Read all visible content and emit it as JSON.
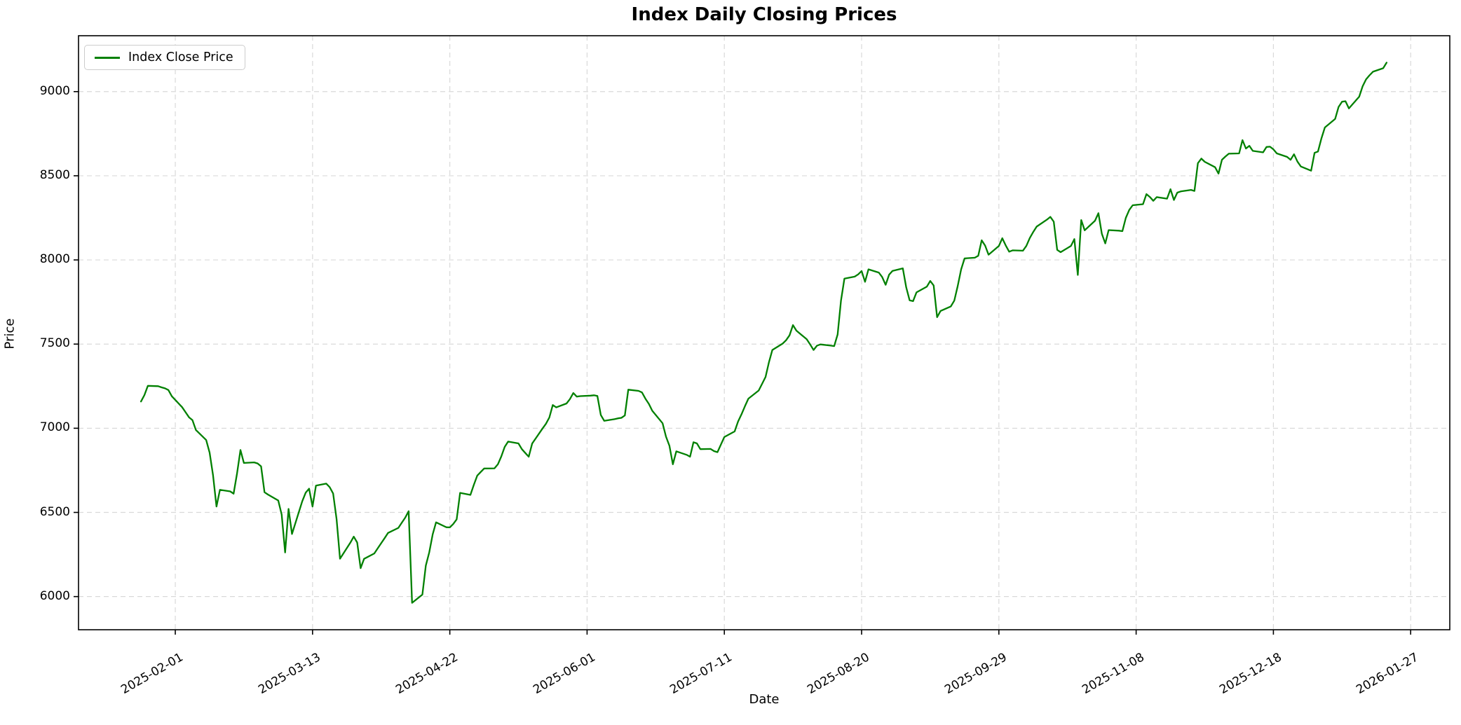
{
  "title": "Index Daily Closing Prices",
  "axes": {
    "xlabel": "Date",
    "ylabel": "Price",
    "y_ticks": [
      6000,
      6500,
      7000,
      7500,
      8000,
      8500,
      9000
    ],
    "x_tick_labels": [
      "2025-02-01",
      "2025-03-13",
      "2025-04-22",
      "2025-06-01",
      "2025-07-11",
      "2025-08-20",
      "2025-09-29",
      "2025-11-08",
      "2025-12-18",
      "2026-01-27"
    ],
    "y_range": [
      5803,
      9332
    ],
    "x_range_days_from_start": [
      -18.2,
      381.4
    ],
    "grid": "on",
    "grid_color": "#d9d9d9",
    "frame_color": "#000000"
  },
  "legend": {
    "label": "Index Close Price",
    "position": "upper left",
    "line_color": "#008000"
  },
  "chart_data": {
    "type": "line",
    "title": "Index Daily Closing Prices",
    "xlabel": "Date",
    "ylabel": "Price",
    "legend_position": "upper left",
    "ylim": [
      5803,
      9332
    ],
    "series": [
      {
        "name": "Index Close Price",
        "color": "#008000",
        "start_date": "2025-01-22",
        "dates": [
          "2025-01-22",
          "2025-01-23",
          "2025-01-24",
          "2025-01-27",
          "2025-01-28",
          "2025-01-29",
          "2025-01-30",
          "2025-01-31",
          "2025-02-03",
          "2025-02-04",
          "2025-02-05",
          "2025-02-06",
          "2025-02-07",
          "2025-02-10",
          "2025-02-11",
          "2025-02-12",
          "2025-02-13",
          "2025-02-14",
          "2025-02-17",
          "2025-02-18",
          "2025-02-19",
          "2025-02-20",
          "2025-02-21",
          "2025-02-24",
          "2025-02-25",
          "2025-02-26",
          "2025-02-27",
          "2025-02-28",
          "2025-03-03",
          "2025-03-04",
          "2025-03-05",
          "2025-03-06",
          "2025-03-07",
          "2025-03-10",
          "2025-03-11",
          "2025-03-12",
          "2025-03-13",
          "2025-03-14",
          "2025-03-17",
          "2025-03-18",
          "2025-03-19",
          "2025-03-20",
          "2025-03-21",
          "2025-03-24",
          "2025-03-25",
          "2025-03-26",
          "2025-03-27",
          "2025-03-28",
          "2025-03-31",
          "2025-04-01",
          "2025-04-02",
          "2025-04-03",
          "2025-04-04",
          "2025-04-07",
          "2025-04-08",
          "2025-04-09",
          "2025-04-10",
          "2025-04-11",
          "2025-04-14",
          "2025-04-15",
          "2025-04-16",
          "2025-04-17",
          "2025-04-18",
          "2025-04-21",
          "2025-04-22",
          "2025-04-23",
          "2025-04-24",
          "2025-04-25",
          "2025-04-28",
          "2025-04-29",
          "2025-04-30",
          "2025-05-01",
          "2025-05-02",
          "2025-05-05",
          "2025-05-06",
          "2025-05-07",
          "2025-05-08",
          "2025-05-09",
          "2025-05-12",
          "2025-05-13",
          "2025-05-14",
          "2025-05-15",
          "2025-05-16",
          "2025-05-19",
          "2025-05-20",
          "2025-05-21",
          "2025-05-22",
          "2025-05-23",
          "2025-05-26",
          "2025-05-27",
          "2025-05-28",
          "2025-05-29",
          "2025-05-30",
          "2025-06-02",
          "2025-06-03",
          "2025-06-04",
          "2025-06-05",
          "2025-06-06",
          "2025-06-09",
          "2025-06-10",
          "2025-06-11",
          "2025-06-12",
          "2025-06-13",
          "2025-06-16",
          "2025-06-17",
          "2025-06-18",
          "2025-06-19",
          "2025-06-20",
          "2025-06-23",
          "2025-06-24",
          "2025-06-25",
          "2025-06-26",
          "2025-06-27",
          "2025-06-30",
          "2025-07-01",
          "2025-07-02",
          "2025-07-03",
          "2025-07-04",
          "2025-07-07",
          "2025-07-08",
          "2025-07-09",
          "2025-07-10",
          "2025-07-11",
          "2025-07-14",
          "2025-07-15",
          "2025-07-16",
          "2025-07-17",
          "2025-07-18",
          "2025-07-21",
          "2025-07-22",
          "2025-07-23",
          "2025-07-24",
          "2025-07-25",
          "2025-07-28",
          "2025-07-29",
          "2025-07-30",
          "2025-07-31",
          "2025-08-01",
          "2025-08-04",
          "2025-08-05",
          "2025-08-06",
          "2025-08-07",
          "2025-08-08",
          "2025-08-11",
          "2025-08-12",
          "2025-08-13",
          "2025-08-14",
          "2025-08-15",
          "2025-08-18",
          "2025-08-19",
          "2025-08-20",
          "2025-08-21",
          "2025-08-22",
          "2025-08-25",
          "2025-08-26",
          "2025-08-27",
          "2025-08-28",
          "2025-08-29",
          "2025-09-01",
          "2025-09-02",
          "2025-09-03",
          "2025-09-04",
          "2025-09-05",
          "2025-09-08",
          "2025-09-09",
          "2025-09-10",
          "2025-09-11",
          "2025-09-12",
          "2025-09-15",
          "2025-09-16",
          "2025-09-17",
          "2025-09-18",
          "2025-09-19",
          "2025-09-22",
          "2025-09-23",
          "2025-09-24",
          "2025-09-25",
          "2025-09-26",
          "2025-09-29",
          "2025-09-30",
          "2025-10-01",
          "2025-10-02",
          "2025-10-03",
          "2025-10-06",
          "2025-10-07",
          "2025-10-08",
          "2025-10-09",
          "2025-10-10",
          "2025-10-13",
          "2025-10-14",
          "2025-10-15",
          "2025-10-16",
          "2025-10-17",
          "2025-10-20",
          "2025-10-21",
          "2025-10-22",
          "2025-10-23",
          "2025-10-24",
          "2025-10-27",
          "2025-10-28",
          "2025-10-29",
          "2025-10-30",
          "2025-10-31",
          "2025-11-03",
          "2025-11-04",
          "2025-11-05",
          "2025-11-06",
          "2025-11-07",
          "2025-11-10",
          "2025-11-11",
          "2025-11-12",
          "2025-11-13",
          "2025-11-14",
          "2025-11-17",
          "2025-11-18",
          "2025-11-19",
          "2025-11-20",
          "2025-11-21",
          "2025-11-24",
          "2025-11-25",
          "2025-11-26",
          "2025-11-27",
          "2025-11-28",
          "2025-12-01",
          "2025-12-02",
          "2025-12-03",
          "2025-12-04",
          "2025-12-05",
          "2025-12-08",
          "2025-12-09",
          "2025-12-10",
          "2025-12-11",
          "2025-12-12",
          "2025-12-15",
          "2025-12-16",
          "2025-12-17",
          "2025-12-18",
          "2025-12-19",
          "2025-12-22",
          "2025-12-23",
          "2025-12-24",
          "2025-12-25",
          "2025-12-26",
          "2025-12-29",
          "2025-12-30",
          "2025-12-31",
          "2026-01-01",
          "2026-01-02",
          "2026-01-05",
          "2026-01-06",
          "2026-01-07",
          "2026-01-08",
          "2026-01-09",
          "2026-01-12",
          "2026-01-13",
          "2026-01-14",
          "2026-01-15",
          "2026-01-16",
          "2026-01-19",
          "2026-01-20"
        ],
        "values": [
          7159,
          7197,
          7252,
          7250,
          7243,
          7237,
          7227,
          7190,
          7125,
          7095,
          7065,
          7048,
          6990,
          6930,
          6855,
          6720,
          6535,
          6634,
          6625,
          6611,
          6731,
          6871,
          6794,
          6797,
          6791,
          6774,
          6620,
          6606,
          6571,
          6487,
          6262,
          6521,
          6372,
          6566,
          6617,
          6641,
          6535,
          6659,
          6671,
          6650,
          6612,
          6460,
          6225,
          6320,
          6356,
          6321,
          6169,
          6224,
          6256,
          6287,
          6317,
          6347,
          6378,
          6408,
          6439,
          6469,
          6507,
          5963,
          6012,
          6184,
          6263,
          6370,
          6441,
          6412,
          6411,
          6431,
          6459,
          6616,
          6604,
          6664,
          6719,
          6740,
          6761,
          6762,
          6786,
          6833,
          6889,
          6921,
          6910,
          6876,
          6853,
          6831,
          6909,
          6998,
          7026,
          7064,
          7138,
          7124,
          7147,
          7173,
          7209,
          7188,
          7191,
          7194,
          7196,
          7192,
          7079,
          7044,
          7054,
          7059,
          7062,
          7076,
          7229,
          7222,
          7213,
          7176,
          7145,
          7104,
          7030,
          6950,
          6896,
          6786,
          6863,
          6842,
          6831,
          6917,
          6910,
          6876,
          6877,
          6864,
          6858,
          6903,
          6948,
          6981,
          7040,
          7083,
          7131,
          7176,
          7224,
          7264,
          7305,
          7393,
          7465,
          7503,
          7523,
          7552,
          7613,
          7580,
          7529,
          7498,
          7465,
          7491,
          7498,
          7491,
          7488,
          7557,
          7758,
          7889,
          7901,
          7914,
          7934,
          7870,
          7944,
          7925,
          7898,
          7852,
          7912,
          7935,
          7950,
          7838,
          7760,
          7755,
          7807,
          7841,
          7875,
          7848,
          7660,
          7697,
          7724,
          7758,
          7845,
          7944,
          8009,
          8013,
          8025,
          8117,
          8085,
          8031,
          8083,
          8129,
          8086,
          8049,
          8057,
          8055,
          8083,
          8130,
          8166,
          8198,
          8239,
          8256,
          8227,
          8060,
          8046,
          8083,
          8124,
          7911,
          8237,
          8176,
          8233,
          8278,
          8155,
          8098,
          8177,
          8174,
          8171,
          8250,
          8297,
          8325,
          8331,
          8391,
          8374,
          8351,
          8373,
          8364,
          8420,
          8356,
          8400,
          8407,
          8416,
          8410,
          8575,
          8602,
          8583,
          8551,
          8513,
          8595,
          8614,
          8631,
          8633,
          8712,
          8662,
          8678,
          8648,
          8639,
          8671,
          8673,
          8657,
          8633,
          8612,
          8595,
          8628,
          8584,
          8555,
          8530,
          8636,
          8644,
          8722,
          8787,
          8838,
          8909,
          8940,
          8943,
          8900,
          8970,
          9032,
          9073,
          9097,
          9118,
          9139,
          9172
        ]
      }
    ],
    "x_ticks": [
      "2025-02-01",
      "2025-03-13",
      "2025-04-22",
      "2025-06-01",
      "2025-07-11",
      "2025-08-20",
      "2025-09-29",
      "2025-11-08",
      "2025-12-18",
      "2026-01-27"
    ],
    "y_ticks": [
      6000,
      6500,
      7000,
      7500,
      8000,
      8500,
      9000
    ]
  }
}
